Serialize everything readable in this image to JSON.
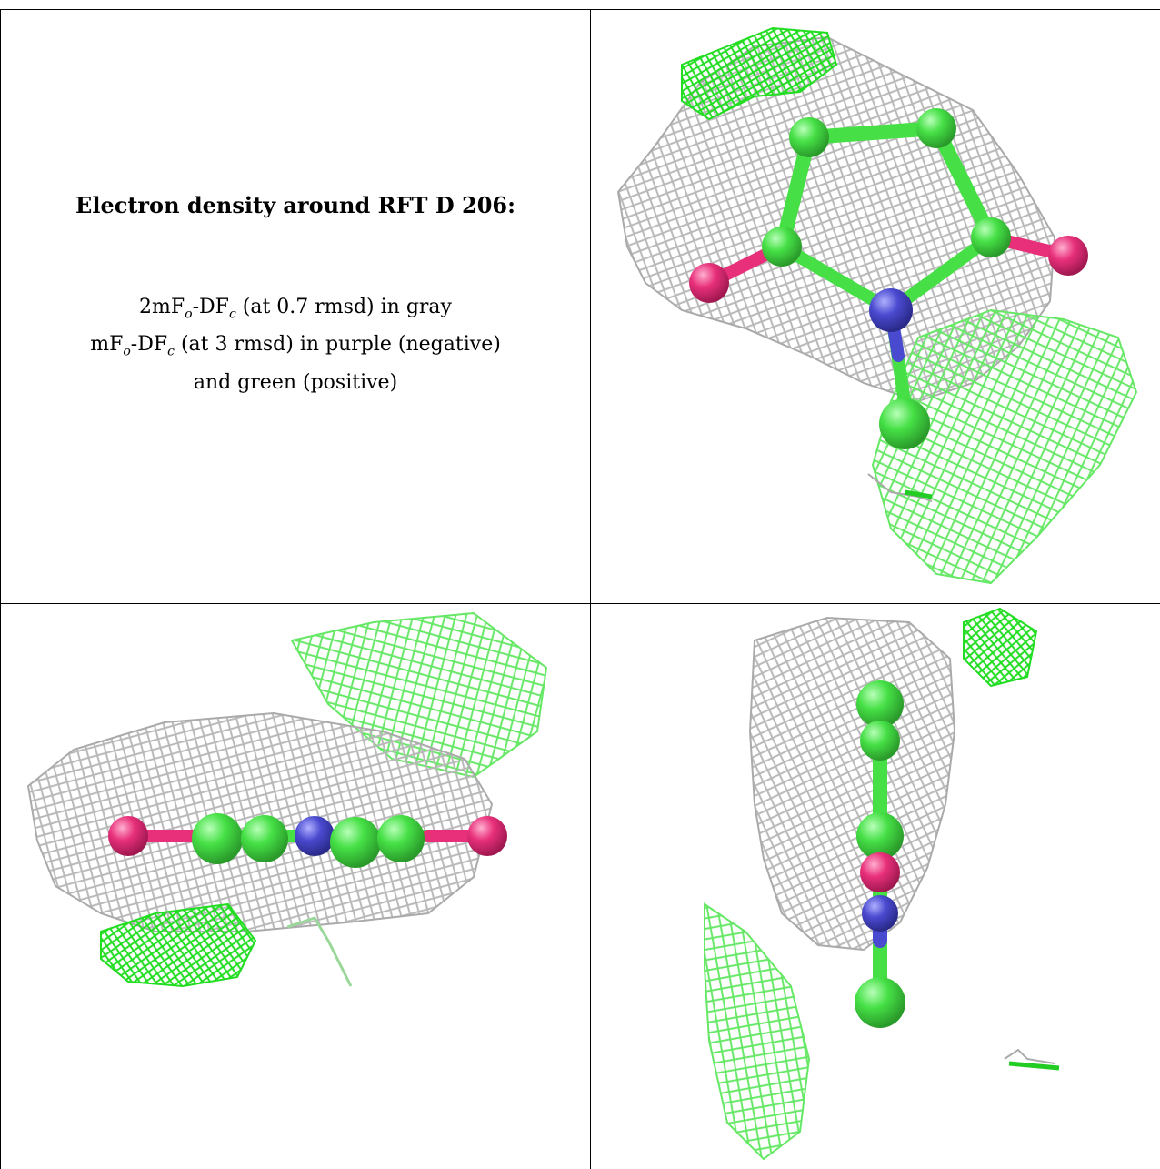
{
  "panel_text": {
    "title": "Electron density around RFT D 206:",
    "line1": {
      "a": "2mF",
      "sub1": "o",
      "b": "-DF",
      "sub2": "c",
      "c": " (at 0.7 rmsd) in gray"
    },
    "line2": {
      "a": "mF",
      "sub1": "o",
      "b": "-DF",
      "sub2": "c",
      "c": " (at 3 rmsd) in purple (negative)"
    },
    "line3": "and green (positive)"
  },
  "colors": {
    "mesh_2fofc": "#b4b4b4",
    "mesh_fofc_positive": "#22e022",
    "mesh_fofc_positive_light": "#66e866",
    "carbon": "#46e046",
    "oxygen": "#e8307a",
    "nitrogen": "#4a4ad0"
  }
}
